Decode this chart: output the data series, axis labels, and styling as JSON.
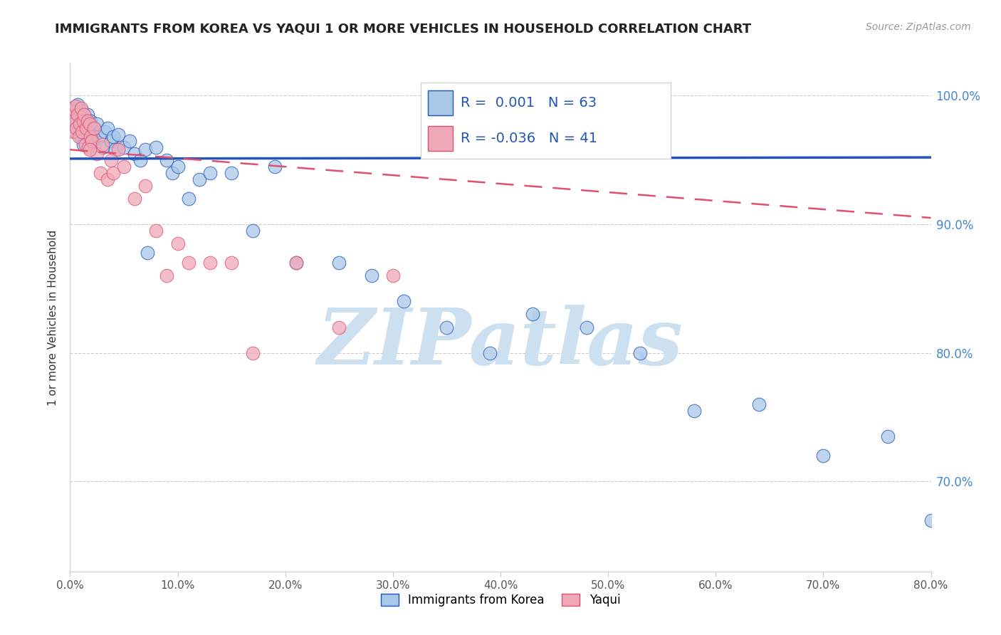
{
  "title": "IMMIGRANTS FROM KOREA VS YAQUI 1 OR MORE VEHICLES IN HOUSEHOLD CORRELATION CHART",
  "source": "Source: ZipAtlas.com",
  "ylabel": "1 or more Vehicles in Household",
  "legend_label1": "Immigrants from Korea",
  "legend_label2": "Yaqui",
  "R1": "0.001",
  "N1": "63",
  "R2": "-0.036",
  "N2": "41",
  "xlim": [
    0.0,
    0.8
  ],
  "ylim": [
    0.63,
    1.025
  ],
  "xticks": [
    0.0,
    0.1,
    0.2,
    0.3,
    0.4,
    0.5,
    0.6,
    0.7,
    0.8
  ],
  "yticks_right": [
    0.7,
    0.8,
    0.9,
    1.0
  ],
  "ytick_labels_right": [
    "70.0%",
    "80.0%",
    "90.0%",
    "100.0%"
  ],
  "color_blue": "#a8c8e8",
  "color_pink": "#f0a8b8",
  "color_blue_line": "#2255bb",
  "color_pink_line": "#e05070",
  "watermark": "ZIPatlas",
  "watermark_color": "#cce0f0",
  "blue_trend_x0": 0.0,
  "blue_trend_y0": 0.951,
  "blue_trend_x1": 0.8,
  "blue_trend_y1": 0.952,
  "pink_trend_x0": 0.0,
  "pink_trend_y0": 0.958,
  "pink_trend_x1": 0.8,
  "pink_trend_y1": 0.905,
  "blue_dots_x": [
    0.002,
    0.003,
    0.004,
    0.005,
    0.005,
    0.006,
    0.007,
    0.008,
    0.009,
    0.01,
    0.01,
    0.011,
    0.012,
    0.013,
    0.014,
    0.015,
    0.016,
    0.017,
    0.018,
    0.019,
    0.02,
    0.021,
    0.022,
    0.023,
    0.025,
    0.027,
    0.03,
    0.032,
    0.035,
    0.038,
    0.04,
    0.042,
    0.045,
    0.05,
    0.055,
    0.06,
    0.065,
    0.07,
    0.08,
    0.09,
    0.095,
    0.1,
    0.11,
    0.12,
    0.13,
    0.15,
    0.17,
    0.19,
    0.21,
    0.25,
    0.28,
    0.31,
    0.35,
    0.39,
    0.43,
    0.48,
    0.53,
    0.58,
    0.64,
    0.7,
    0.76,
    0.8,
    0.072
  ],
  "blue_dots_y": [
    0.99,
    0.985,
    0.978,
    0.988,
    0.972,
    0.98,
    0.993,
    0.975,
    0.985,
    0.968,
    0.978,
    0.988,
    0.962,
    0.975,
    0.98,
    0.97,
    0.985,
    0.975,
    0.972,
    0.98,
    0.965,
    0.97,
    0.975,
    0.962,
    0.978,
    0.968,
    0.96,
    0.972,
    0.975,
    0.965,
    0.968,
    0.958,
    0.97,
    0.96,
    0.965,
    0.955,
    0.95,
    0.958,
    0.96,
    0.95,
    0.94,
    0.945,
    0.92,
    0.935,
    0.94,
    0.94,
    0.895,
    0.945,
    0.87,
    0.87,
    0.86,
    0.84,
    0.82,
    0.8,
    0.83,
    0.82,
    0.8,
    0.755,
    0.76,
    0.72,
    0.735,
    0.67,
    0.878
  ],
  "pink_dots_x": [
    0.002,
    0.003,
    0.004,
    0.005,
    0.006,
    0.007,
    0.008,
    0.009,
    0.01,
    0.011,
    0.012,
    0.013,
    0.014,
    0.015,
    0.016,
    0.017,
    0.018,
    0.019,
    0.02,
    0.022,
    0.025,
    0.028,
    0.03,
    0.035,
    0.038,
    0.04,
    0.045,
    0.05,
    0.06,
    0.07,
    0.08,
    0.09,
    0.1,
    0.11,
    0.13,
    0.15,
    0.17,
    0.21,
    0.25,
    0.3,
    0.018
  ],
  "pink_dots_y": [
    0.988,
    0.972,
    0.98,
    0.992,
    0.975,
    0.985,
    0.968,
    0.978,
    0.99,
    0.972,
    0.98,
    0.985,
    0.962,
    0.975,
    0.98,
    0.96,
    0.978,
    0.968,
    0.965,
    0.975,
    0.955,
    0.94,
    0.962,
    0.935,
    0.95,
    0.94,
    0.958,
    0.945,
    0.92,
    0.93,
    0.895,
    0.86,
    0.885,
    0.87,
    0.87,
    0.87,
    0.8,
    0.87,
    0.82,
    0.86,
    0.958
  ]
}
